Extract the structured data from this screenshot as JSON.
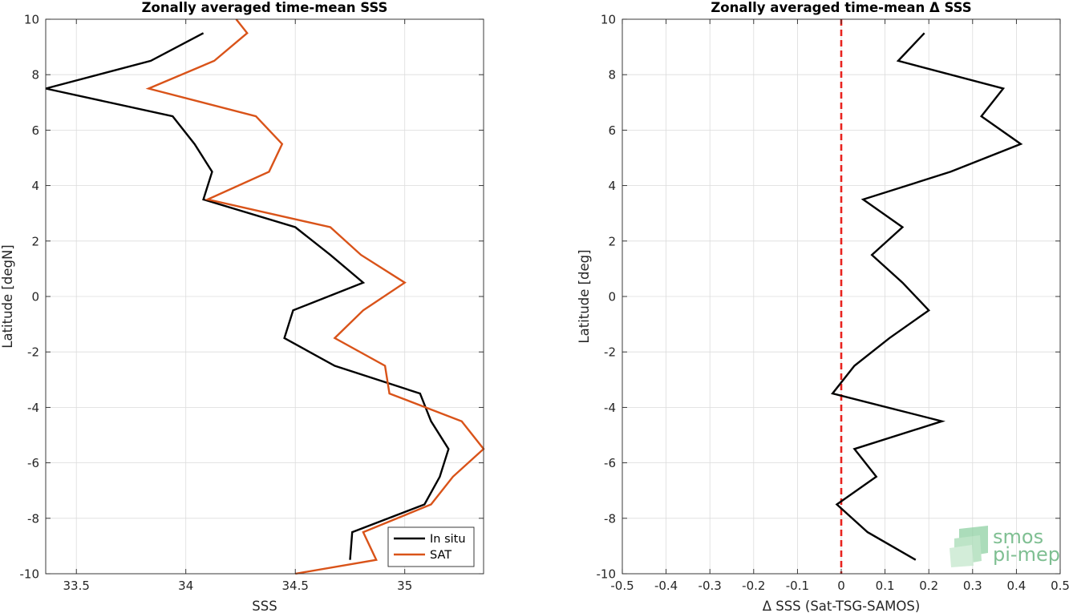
{
  "chart_data": [
    {
      "type": "line",
      "title": "Zonally averaged time-mean SSS",
      "xlabel": "SSS",
      "ylabel": "Latitude [degN]",
      "xlim": [
        33.36,
        35.36
      ],
      "ylim": [
        -10,
        10
      ],
      "xticks": [
        "33.5",
        "34",
        "34.5",
        "35"
      ],
      "xtick_values": [
        33.5,
        34,
        34.5,
        35
      ],
      "yticks": [
        "-10",
        "-8",
        "-6",
        "-4",
        "-2",
        "0",
        "2",
        "4",
        "6",
        "8",
        "10"
      ],
      "ytick_values": [
        -10,
        -8,
        -6,
        -4,
        -2,
        0,
        2,
        4,
        6,
        8,
        10
      ],
      "grid": true,
      "legend_position": "bottom-right",
      "series": [
        {
          "name": "In situ",
          "color": "#000000",
          "x": [
            34.08,
            33.84,
            33.36,
            33.94,
            34.04,
            34.12,
            34.08,
            34.5,
            34.66,
            34.81,
            34.49,
            34.45,
            34.68,
            35.07,
            35.12,
            35.2,
            35.16,
            35.09,
            34.76,
            34.75
          ],
          "y": [
            9.5,
            8.5,
            7.5,
            6.5,
            5.5,
            4.5,
            3.5,
            2.5,
            1.5,
            0.5,
            -0.5,
            -1.5,
            -2.5,
            -3.5,
            -4.5,
            -5.5,
            -6.5,
            -7.5,
            -8.5,
            -9.5
          ]
        },
        {
          "name": "SAT",
          "color": "#d95319",
          "x": [
            34.23,
            34.28,
            34.13,
            33.83,
            34.32,
            34.44,
            34.38,
            34.1,
            34.66,
            34.8,
            35.0,
            34.81,
            34.68,
            34.91,
            34.93,
            35.26,
            35.36,
            35.22,
            35.12,
            34.81,
            34.87,
            34.5
          ],
          "y": [
            10,
            9.5,
            8.5,
            7.5,
            6.5,
            5.5,
            4.5,
            3.5,
            2.5,
            1.5,
            0.5,
            -0.5,
            -1.5,
            -2.5,
            -3.5,
            -4.5,
            -5.5,
            -6.5,
            -7.5,
            -8.5,
            -9.5,
            -10
          ]
        }
      ]
    },
    {
      "type": "line",
      "title": "Zonally averaged time-mean Δ SSS",
      "xlabel": "Δ SSS (Sat-TSG-SAMOS)",
      "ylabel": "Latitude [deg]",
      "xlim": [
        -0.5,
        0.5
      ],
      "ylim": [
        -10,
        10
      ],
      "xticks": [
        "-0.5",
        "-0.4",
        "-0.3",
        "-0.2",
        "-0.1",
        "0",
        "0.1",
        "0.2",
        "0.3",
        "0.4",
        "0.5"
      ],
      "xtick_values": [
        -0.5,
        -0.4,
        -0.3,
        -0.2,
        -0.1,
        0,
        0.1,
        0.2,
        0.3,
        0.4,
        0.5
      ],
      "yticks": [
        "-10",
        "-8",
        "-6",
        "-4",
        "-2",
        "0",
        "2",
        "4",
        "6",
        "8",
        "10"
      ],
      "ytick_values": [
        -10,
        -8,
        -6,
        -4,
        -2,
        0,
        2,
        4,
        6,
        8,
        10
      ],
      "grid": true,
      "reference_line": {
        "x": 0,
        "color": "#e8231e",
        "style": "dashed"
      },
      "series": [
        {
          "color": "#000000",
          "x": [
            0.19,
            0.13,
            0.37,
            0.32,
            0.41,
            0.25,
            0.05,
            0.14,
            0.07,
            0.14,
            0.2,
            0.11,
            0.03,
            -0.02,
            0.23,
            0.03,
            0.08,
            -0.01,
            0.06,
            0.17
          ],
          "y": [
            9.5,
            8.5,
            7.5,
            6.5,
            5.5,
            4.5,
            3.5,
            2.5,
            1.5,
            0.5,
            -0.5,
            -1.5,
            -2.5,
            -3.5,
            -4.5,
            -5.5,
            -6.5,
            -7.5,
            -8.5,
            -9.5
          ]
        }
      ]
    }
  ],
  "logo": {
    "line1": "smos",
    "line2": "pi-mep",
    "color": "#7fbf92"
  }
}
